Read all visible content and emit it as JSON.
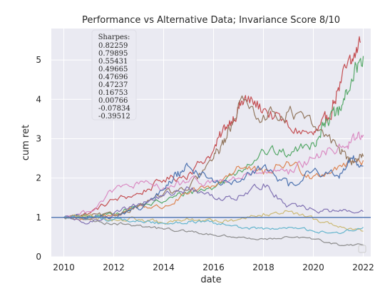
{
  "chart_data": {
    "type": "line",
    "title": "Performance vs Alternative Data; Invariance Score 8/10",
    "xlabel": "date",
    "ylabel": "cum ret",
    "xlim": [
      2009.5,
      2022.3
    ],
    "ylim": [
      0,
      5.8
    ],
    "x_ticks": [
      2010,
      2012,
      2014,
      2016,
      2018,
      2020,
      2022
    ],
    "y_ticks": [
      0,
      1,
      2,
      3,
      4,
      5
    ],
    "grid": true,
    "background": "#eaeaf2",
    "reference_line": {
      "y": 1,
      "color": "#4c72b0"
    },
    "legend_placement": "lower right",
    "annotation": {
      "header": "Sharpes:",
      "values": [
        "0.82259",
        "0.79895",
        "0.55431",
        "0.49665",
        "0.47696",
        "0.47237",
        "0.16753",
        "0.00766",
        "-0.07834",
        "-0.39512"
      ]
    },
    "series": [
      {
        "color": "#c44e52",
        "x": [
          2010.0,
          2011.0,
          2012.0,
          2013.0,
          2014.0,
          2015.0,
          2016.0,
          2016.5,
          2017.0,
          2017.3,
          2018.0,
          2019.0,
          2020.0,
          2020.5,
          2021.0,
          2021.5,
          2021.9
        ],
        "y": [
          1.0,
          1.1,
          1.45,
          1.6,
          1.95,
          2.1,
          2.7,
          3.3,
          3.8,
          4.0,
          3.75,
          3.3,
          3.1,
          3.4,
          4.3,
          4.9,
          5.45
        ]
      },
      {
        "color": "#55a868",
        "x": [
          2010.0,
          2011.0,
          2012.0,
          2013.0,
          2014.0,
          2015.0,
          2016.0,
          2017.0,
          2018.0,
          2019.0,
          2020.0,
          2020.5,
          2021.0,
          2021.5,
          2022.0
        ],
        "y": [
          1.0,
          1.0,
          1.1,
          1.3,
          1.4,
          1.65,
          1.75,
          2.2,
          2.7,
          2.6,
          2.9,
          3.5,
          3.6,
          4.4,
          5.1
        ]
      },
      {
        "color": "#dd8452",
        "x": [
          2010.0,
          2011.0,
          2012.0,
          2013.0,
          2014.0,
          2015.0,
          2016.0,
          2017.0,
          2018.0,
          2019.0,
          2020.0,
          2021.0,
          2022.0
        ],
        "y": [
          1.0,
          0.95,
          1.05,
          1.3,
          1.25,
          1.6,
          1.8,
          2.3,
          2.1,
          2.4,
          2.05,
          2.3,
          2.45
        ]
      },
      {
        "color": "#937860",
        "x": [
          2010.0,
          2011.0,
          2012.0,
          2013.0,
          2014.0,
          2015.0,
          2016.0,
          2016.5,
          2017.0,
          2018.0,
          2019.0,
          2020.0,
          2021.0,
          2021.5,
          2022.0
        ],
        "y": [
          1.0,
          1.05,
          1.05,
          1.3,
          1.6,
          1.7,
          2.5,
          3.0,
          3.9,
          3.6,
          3.7,
          3.3,
          2.8,
          2.4,
          2.55
        ]
      },
      {
        "color": "#da8bc3",
        "x": [
          2010.0,
          2011.0,
          2012.0,
          2013.0,
          2014.0,
          2015.0,
          2016.0,
          2017.0,
          2018.0,
          2019.0,
          2020.0,
          2021.0,
          2021.5,
          2022.0
        ],
        "y": [
          1.0,
          1.15,
          1.7,
          1.85,
          1.75,
          1.9,
          1.9,
          2.0,
          2.15,
          2.1,
          2.5,
          2.8,
          2.9,
          3.1
        ]
      },
      {
        "color": "#4c72b0",
        "x": [
          2010.0,
          2011.0,
          2012.0,
          2013.0,
          2014.0,
          2014.5,
          2015.0,
          2016.0,
          2017.0,
          2018.0,
          2019.0,
          2020.0,
          2021.0,
          2021.5,
          2022.0
        ],
        "y": [
          1.0,
          1.05,
          1.0,
          1.2,
          1.7,
          2.1,
          2.3,
          1.9,
          1.9,
          2.3,
          1.8,
          2.2,
          2.05,
          2.5,
          2.3
        ]
      },
      {
        "color": "#8172b3",
        "x": [
          2010.0,
          2011.0,
          2012.0,
          2013.0,
          2014.0,
          2015.0,
          2016.0,
          2017.0,
          2018.0,
          2019.0,
          2020.0,
          2021.0,
          2022.0
        ],
        "y": [
          1.0,
          0.85,
          1.1,
          1.35,
          1.55,
          1.75,
          1.5,
          1.55,
          1.85,
          1.3,
          1.2,
          1.15,
          1.15
        ]
      },
      {
        "color": "#ccb974",
        "x": [
          2010.0,
          2011.0,
          2012.0,
          2013.0,
          2014.0,
          2015.0,
          2016.0,
          2017.0,
          2018.0,
          2019.0,
          2020.0,
          2021.0,
          2022.0
        ],
        "y": [
          1.0,
          1.05,
          0.95,
          0.95,
          0.85,
          0.95,
          0.9,
          0.95,
          1.1,
          1.15,
          0.95,
          0.75,
          0.65
        ]
      },
      {
        "color": "#64b5cd",
        "x": [
          2010.0,
          2011.0,
          2012.0,
          2013.0,
          2014.0,
          2015.0,
          2016.0,
          2017.0,
          2018.0,
          2019.0,
          2020.0,
          2021.0,
          2022.0
        ],
        "y": [
          1.0,
          1.0,
          0.95,
          0.9,
          0.85,
          0.9,
          0.85,
          0.75,
          0.7,
          0.75,
          0.65,
          0.6,
          0.75
        ]
      },
      {
        "color": "#8c8c8c",
        "x": [
          2010.0,
          2011.0,
          2012.0,
          2013.0,
          2014.0,
          2015.0,
          2016.0,
          2017.0,
          2018.0,
          2019.0,
          2020.0,
          2021.0,
          2022.0
        ],
        "y": [
          1.0,
          0.95,
          0.85,
          0.8,
          0.7,
          0.65,
          0.55,
          0.5,
          0.45,
          0.5,
          0.45,
          0.3,
          0.3
        ]
      }
    ]
  }
}
